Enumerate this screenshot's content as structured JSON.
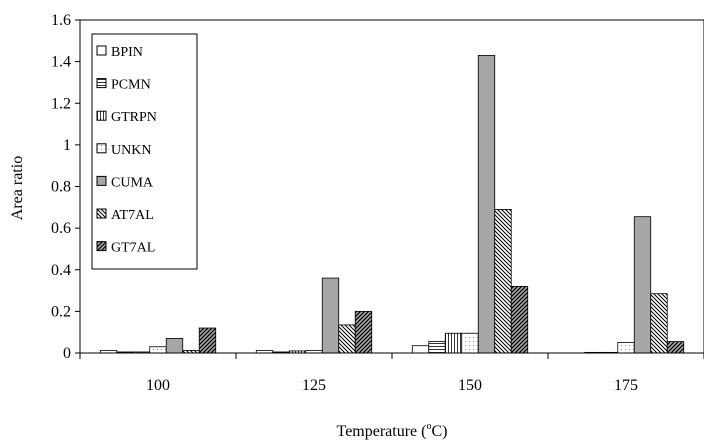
{
  "chart_data": {
    "type": "bar",
    "ylabel": "Area ratio",
    "xlabel_main": "Temperature (",
    "xlabel_sup": "o",
    "xlabel_end": "C)",
    "ylim": [
      0,
      1.6
    ],
    "yticks": [
      "0",
      "0.2",
      "0.4",
      "0.6",
      "0.8",
      "1",
      "1.2",
      "1.4",
      "1.6"
    ],
    "categories": [
      "100",
      "125",
      "150",
      "175"
    ],
    "legend_position": "top-left",
    "grid": false,
    "series": [
      {
        "name": "BPIN",
        "pattern": "blank",
        "values": [
          0.012,
          0.012,
          0.035,
          0.0
        ]
      },
      {
        "name": "PCMN",
        "pattern": "hlines",
        "values": [
          0.005,
          0.005,
          0.055,
          0.003
        ]
      },
      {
        "name": "GTRPN",
        "pattern": "vlines",
        "values": [
          0.005,
          0.01,
          0.095,
          0.003
        ]
      },
      {
        "name": "UNKN",
        "pattern": "dots",
        "values": [
          0.03,
          0.012,
          0.095,
          0.05
        ]
      },
      {
        "name": "CUMA",
        "pattern": "gray",
        "values": [
          0.07,
          0.36,
          1.43,
          0.655
        ]
      },
      {
        "name": "AT7AL",
        "pattern": "backslash",
        "values": [
          0.012,
          0.135,
          0.69,
          0.285
        ]
      },
      {
        "name": "GT7AL",
        "pattern": "forward",
        "values": [
          0.12,
          0.2,
          0.32,
          0.055
        ]
      }
    ]
  }
}
